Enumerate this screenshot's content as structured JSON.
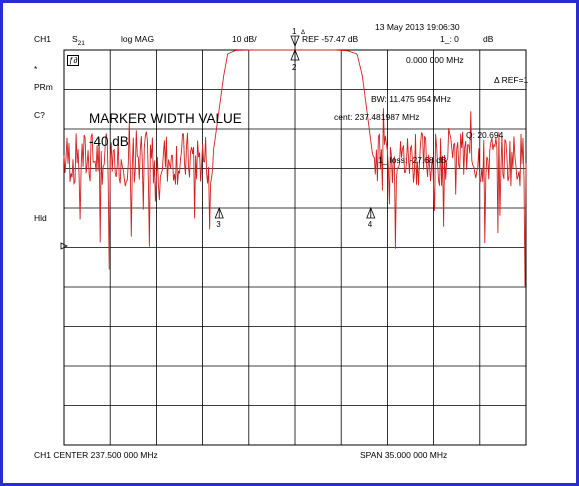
{
  "header": {
    "datetime": "13 May 2013  19:06:30",
    "channel": "CH1",
    "param": "S",
    "param_sub": "21",
    "format": "log MAG",
    "scale": "10 dB/",
    "ref": "REF -57.47 dB",
    "marker_readout_left": "1_: 0",
    "marker_readout_unit": "dB"
  },
  "left_panel": {
    "star": "*",
    "prm": "PRm",
    "c": "C?",
    "hld": "Hld"
  },
  "annotations": {
    "smoothing_icon": "ƒ∂",
    "marker_freq": "0.000 000 MHz",
    "ref_label": "Δ REF=1",
    "bw": "BW:  11.475 954 MHz",
    "cent": "cent:  237.481987 MHz",
    "q": "Q: 20.694",
    "loss": "1_ loss: -27.68  dB",
    "mwv_title": "MARKER WIDTH VALUE",
    "mwv_value": "-40 dB"
  },
  "footer": {
    "center": "CH1 CENTER  237.500 000 MHz",
    "span": "SPAN   35.000 000 MHz"
  },
  "chart_data": {
    "type": "line",
    "center_mhz": 237.5,
    "span_mhz": 35.0,
    "ref_db": -57.47,
    "scale_db_per_div": 10,
    "x_divisions": 10,
    "y_divisions": 10,
    "grid": true,
    "trace_color": "#d42020",
    "grid_color": "#000000",
    "series": [
      {
        "x": [
          220.0,
          222.0,
          224.0,
          226.0,
          228.0,
          229.5,
          231.3,
          232.1,
          232.4,
          233.0,
          234.5,
          237.5,
          240.5,
          241.5,
          242.2,
          242.6,
          243.4,
          245.0,
          247.0,
          249.0,
          251.0,
          253.0,
          255.0
        ],
        "y": [
          -27.5,
          -28.0,
          -26.0,
          -28.0,
          -26.5,
          -27.5,
          -26.0,
          -6.5,
          -1.0,
          -0.1,
          0.0,
          0.0,
          0.0,
          -0.2,
          -1.0,
          -6.5,
          -27.0,
          -28.0,
          -26.0,
          -27.5,
          -26.0,
          -28.0,
          -27.0
        ]
      }
    ],
    "markers": [
      {
        "label": "1",
        "x": 237.5,
        "y": 0.0,
        "delta": true
      },
      {
        "label": "2",
        "x": 237.5,
        "y": 0.0
      },
      {
        "label": "3",
        "x": 231.76,
        "y": -40.0
      },
      {
        "label": "4",
        "x": 243.24,
        "y": -40.0
      }
    ]
  }
}
